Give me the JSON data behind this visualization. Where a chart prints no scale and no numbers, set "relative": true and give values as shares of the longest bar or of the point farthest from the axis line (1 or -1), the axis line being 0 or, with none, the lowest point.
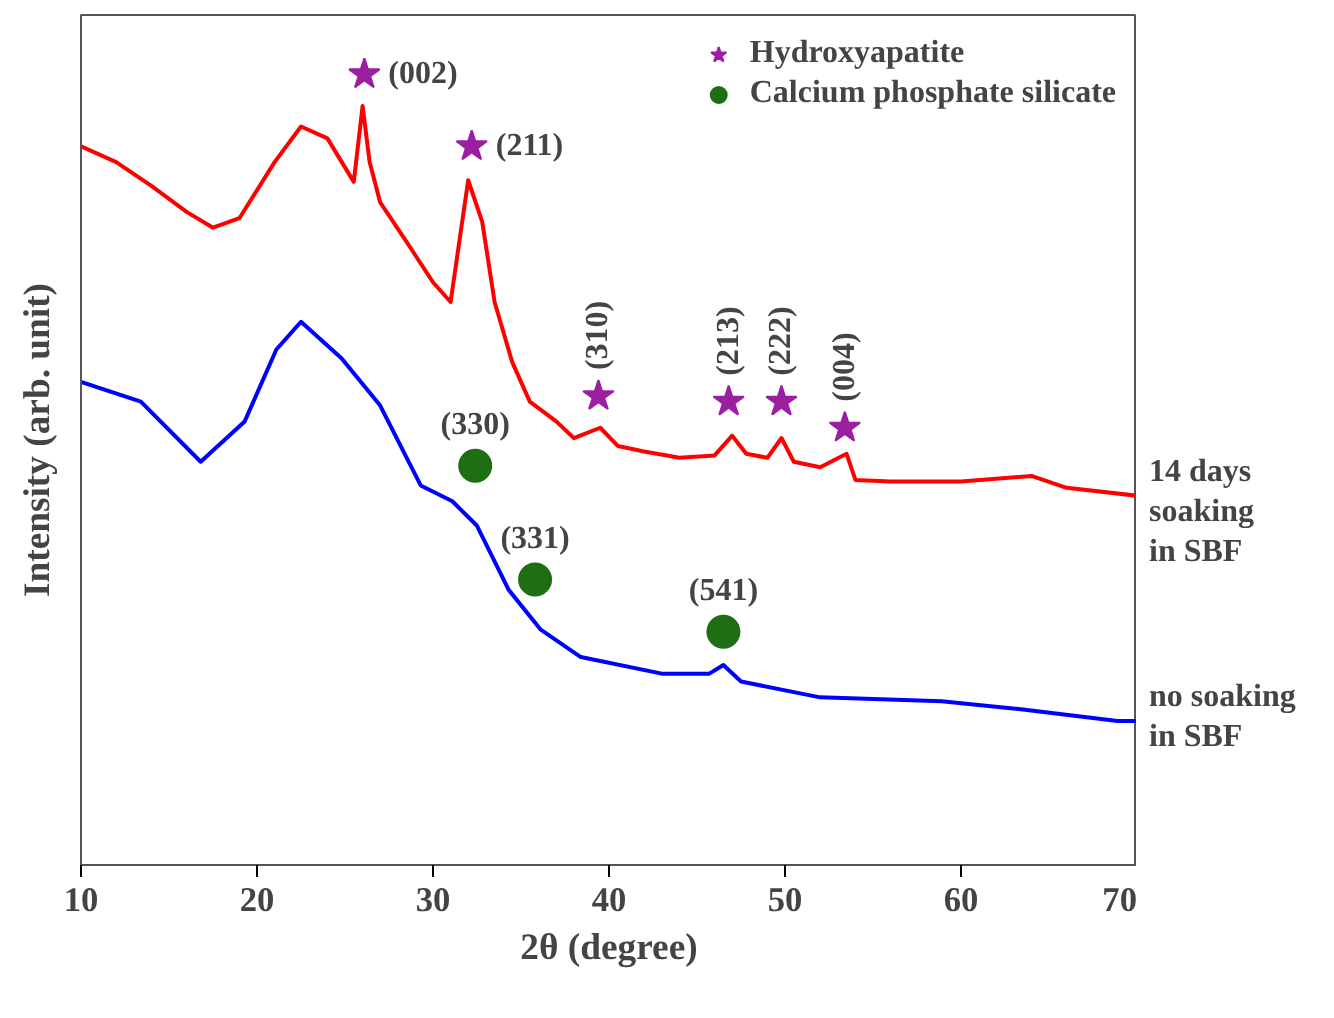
{
  "chart_data": {
    "type": "line",
    "xlabel": "2θ (degree)",
    "ylabel": "Intensity (arb. unit)",
    "relative": true,
    "xlim": [
      10,
      70
    ],
    "xticks": [
      10,
      20,
      30,
      40,
      50,
      60,
      70
    ],
    "tick_labels": "x",
    "grid": false,
    "legend": "top right",
    "series": [
      {
        "name": "14 days soaking in SBF",
        "color": "#ff0000",
        "x": [
          10,
          12,
          14,
          16,
          17.5,
          19,
          21,
          22.5,
          24,
          25.5,
          26,
          26.4,
          27,
          28.5,
          30,
          31,
          32,
          32.8,
          33.5,
          34.5,
          35.5,
          37,
          38,
          39.5,
          40.5,
          42,
          44,
          46,
          47,
          47.8,
          49,
          49.8,
          50.5,
          52,
          53.5,
          54,
          56,
          60,
          64,
          66,
          70
        ],
        "values": [
          0.909,
          0.889,
          0.859,
          0.826,
          0.806,
          0.818,
          0.889,
          0.934,
          0.919,
          0.864,
          0.96,
          0.889,
          0.838,
          0.788,
          0.737,
          0.712,
          0.866,
          0.813,
          0.712,
          0.636,
          0.586,
          0.561,
          0.54,
          0.553,
          0.53,
          0.523,
          0.515,
          0.518,
          0.543,
          0.52,
          0.515,
          0.54,
          0.51,
          0.503,
          0.52,
          0.487,
          0.485,
          0.485,
          0.492,
          0.477,
          0.467
        ]
      },
      {
        "name": "no soaking in SBF",
        "color": "#0000ff",
        "x": [
          10,
          13.4,
          16.8,
          19.3,
          21.1,
          22.5,
          24.8,
          27,
          29.3,
          31.1,
          32.5,
          34.3,
          36.1,
          38.4,
          43,
          45.7,
          46.5,
          47.5,
          52,
          58.9,
          63.4,
          68.9,
          70
        ],
        "values": [
          0.611,
          0.586,
          0.51,
          0.561,
          0.652,
          0.687,
          0.641,
          0.581,
          0.48,
          0.46,
          0.429,
          0.348,
          0.298,
          0.263,
          0.242,
          0.242,
          0.253,
          0.232,
          0.212,
          0.207,
          0.197,
          0.182,
          0.182
        ]
      },
      {
        "name": "Hydroxyapatite",
        "type": "scatter",
        "marker": "star",
        "color": "#9b1fa0",
        "x": [
          26.1,
          32.2,
          39.4,
          46.8,
          49.8,
          53.4
        ],
        "values": [
          1.0,
          0.909,
          0.593,
          0.586,
          0.586,
          0.553
        ]
      },
      {
        "name": "Calcium phosphate silicate",
        "type": "scatter",
        "marker": "circle",
        "color": "#1e6e14",
        "x": [
          32.4,
          35.8,
          46.5
        ],
        "values": [
          0.505,
          0.361,
          0.295
        ]
      }
    ],
    "annotations": [
      {
        "text": "(002)",
        "x": 26.1,
        "y": 1.0
      },
      {
        "text": "(211)",
        "x": 32.2,
        "y": 0.909
      },
      {
        "text": "(310)",
        "x": 39.4,
        "y": 0.593
      },
      {
        "text": "(213)",
        "x": 46.8,
        "y": 0.586
      },
      {
        "text": "(222)",
        "x": 49.8,
        "y": 0.586
      },
      {
        "text": "(004)",
        "x": 53.4,
        "y": 0.553
      },
      {
        "text": "(330)",
        "x": 32.4,
        "y": 0.505
      },
      {
        "text": "(331)",
        "x": 35.8,
        "y": 0.361
      },
      {
        "text": "(541)",
        "x": 46.5,
        "y": 0.295
      }
    ]
  }
}
